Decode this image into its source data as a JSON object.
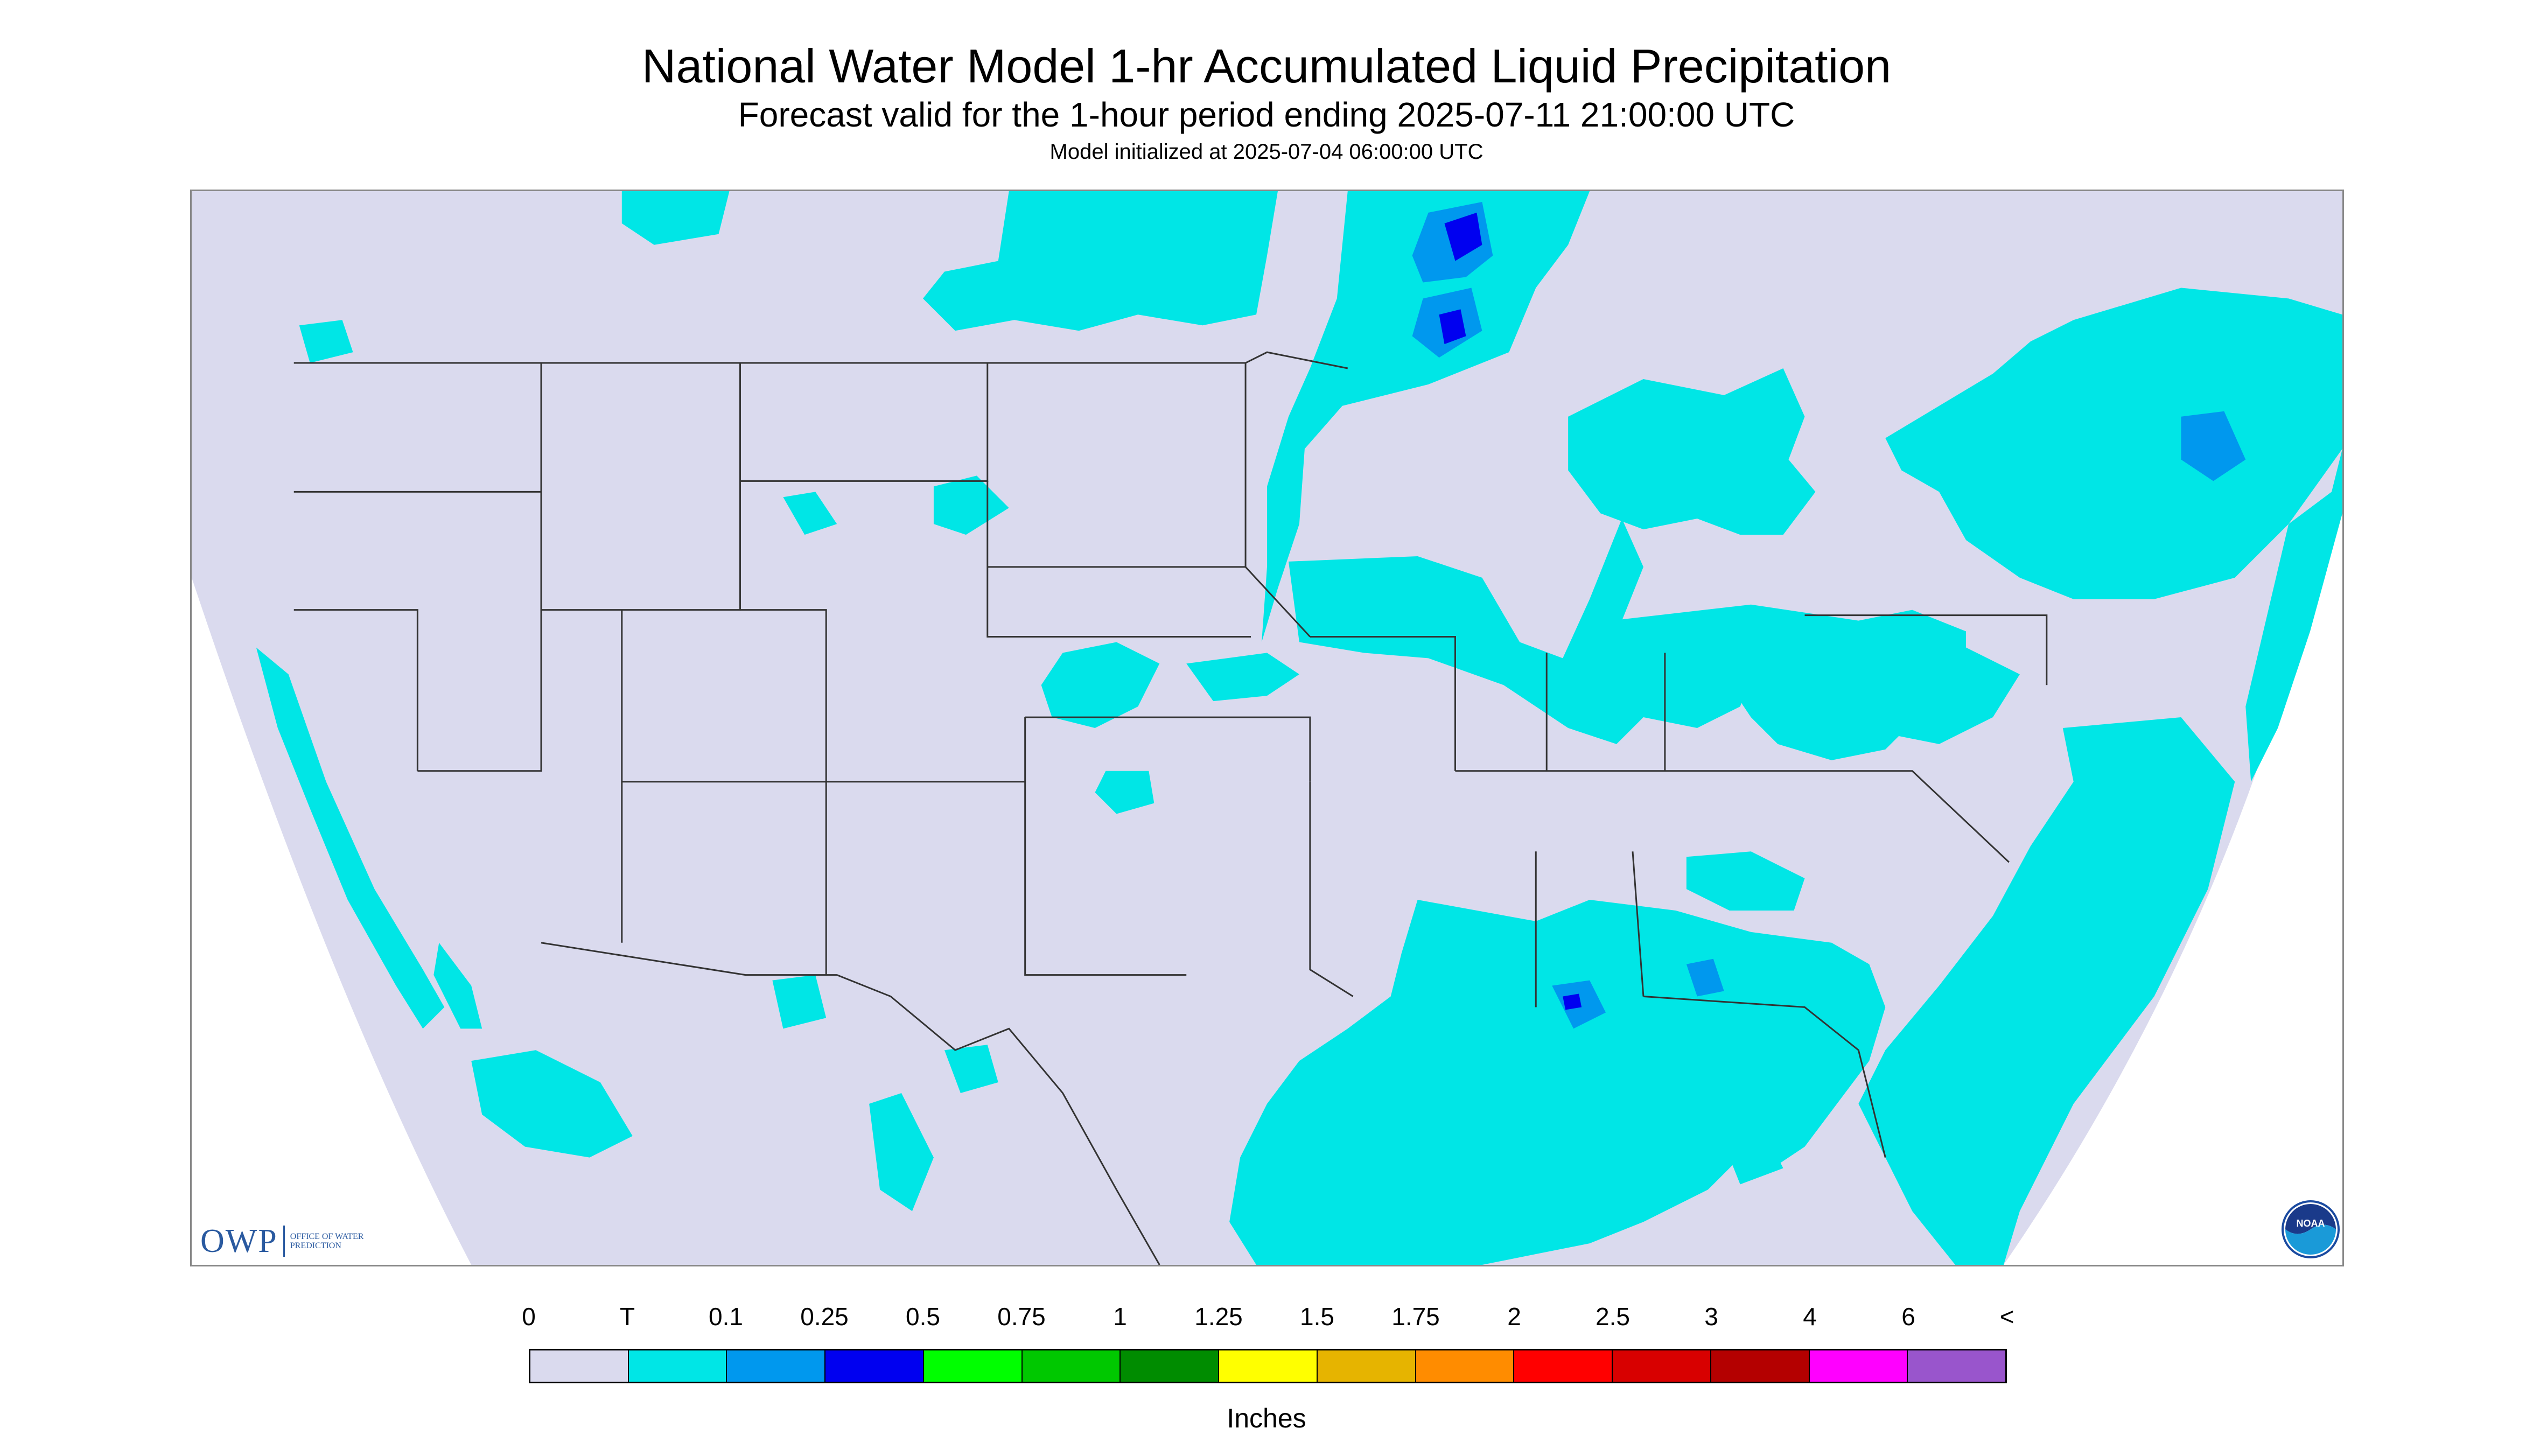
{
  "title": "National Water Model 1-hr Accumulated Liquid Precipitation",
  "subtitle": "Forecast valid for the 1-hour period ending 2025-07-11 21:00:00 UTC",
  "init_line": "Model initialized at 2025-07-04 06:00:00 UTC",
  "owp_logo": {
    "mark": "OWP",
    "text": "OFFICE OF WATER PREDICTION"
  },
  "noaa_logo": {
    "text": "NOAA",
    "icon": "noaa-seal-icon"
  },
  "legend": {
    "units": "Inches",
    "tick_labels": [
      "0",
      "T",
      "0.1",
      "0.25",
      "0.5",
      "0.75",
      "1",
      "1.25",
      "1.5",
      "1.75",
      "2",
      "2.5",
      "3",
      "4",
      "6",
      "<"
    ],
    "colors": [
      "#dadaee",
      "#00e6e6",
      "#0098ee",
      "#0000f0",
      "#00ff00",
      "#00c800",
      "#008c00",
      "#ffff00",
      "#e6b400",
      "#ff8c00",
      "#ff0000",
      "#d80000",
      "#b40000",
      "#ff00ff",
      "#9955cc"
    ]
  },
  "map": {
    "region": "Contiguous United States",
    "no_data_color": "#ffffff",
    "background_color": "#dadaee",
    "precip_trace_color": "#00e6e6",
    "precip_light_color": "#0098ee",
    "precip_moderate_color": "#0000f0"
  }
}
